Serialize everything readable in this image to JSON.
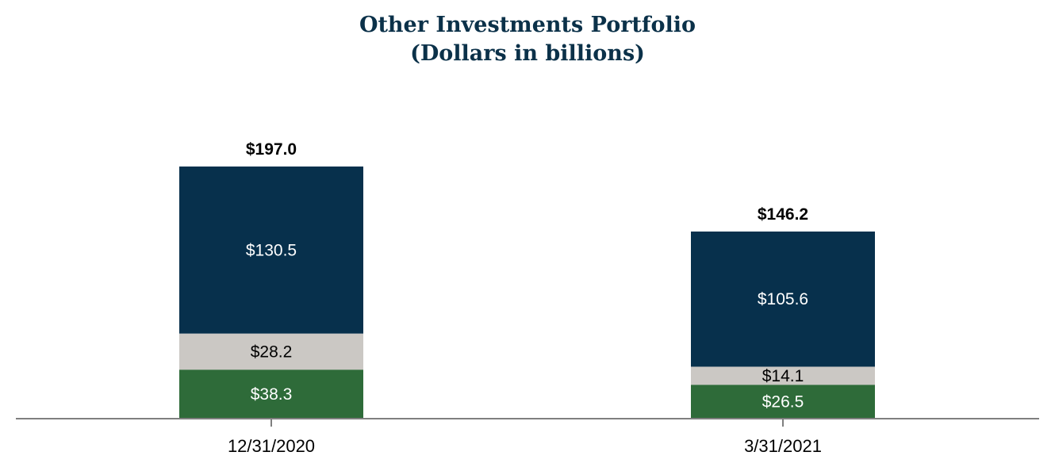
{
  "chart_data": {
    "type": "bar",
    "stacked": true,
    "title": "Other Investments Portfolio",
    "subtitle": "(Dollars in billions)",
    "categories": [
      "12/31/2020",
      "3/31/2021"
    ],
    "series": [
      {
        "values": [
          38.3,
          26.5
        ],
        "labels": [
          "$38.3",
          "$26.5"
        ],
        "color": "#2e6b39",
        "label_color": "#ffffff"
      },
      {
        "values": [
          28.2,
          14.1
        ],
        "labels": [
          "$28.2",
          "$14.1"
        ],
        "color": "#cbc8c4",
        "label_color": "#000000"
      },
      {
        "values": [
          130.5,
          105.6
        ],
        "labels": [
          "$130.5",
          "$105.6"
        ],
        "color": "#07304c",
        "label_color": "#ffffff"
      }
    ],
    "totals": [
      197.0,
      146.2
    ],
    "total_labels": [
      "$197.0",
      "$146.2"
    ],
    "ylim": [
      0,
      197.0
    ],
    "grid": false,
    "legend": "none"
  }
}
